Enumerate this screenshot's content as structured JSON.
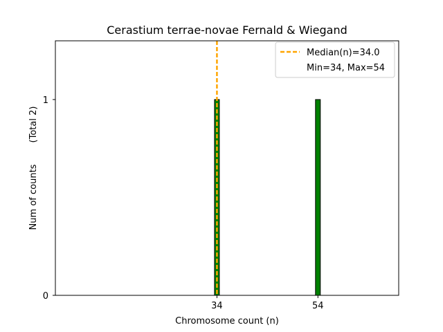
{
  "chart_data": {
    "type": "bar",
    "title": "Cerastium terrae-novae Fernald & Wiegand",
    "xlabel": "Chromosome count (n)",
    "ylabel": "Num of counts",
    "ylabel_note": "(Total 2)",
    "x_values": [
      34,
      54
    ],
    "counts": [
      1,
      1
    ],
    "x_ticks": [
      34,
      54
    ],
    "y_ticks": [
      0,
      1
    ],
    "xlim": [
      2,
      70
    ],
    "ylim": [
      0,
      1.3
    ],
    "bar_color": "#008000",
    "bar_edge_color": "#000000",
    "median_value": 34.0,
    "median_color": "#ffa500",
    "legend_position": "top-right",
    "legend": [
      {
        "label": "Median(n)=34.0",
        "marker": "dashed-line",
        "color": "#ffa500"
      },
      {
        "label": "Min=34, Max=54",
        "marker": "none"
      }
    ],
    "grid": false
  }
}
